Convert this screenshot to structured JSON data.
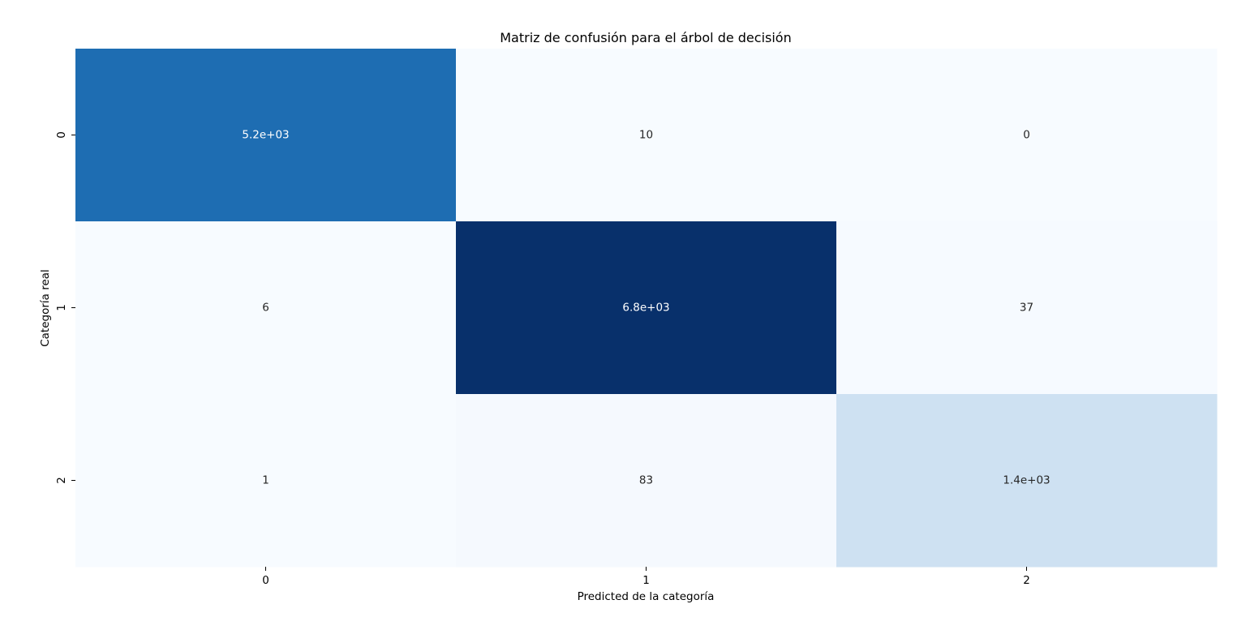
{
  "chart_data": {
    "type": "heatmap",
    "title": "Matriz de confusión para el árbol de decisión",
    "xlabel": "Predicted de la categoría",
    "ylabel": "Categoría real",
    "x_categories": [
      "0",
      "1",
      "2"
    ],
    "y_categories": [
      "0",
      "1",
      "2"
    ],
    "values": [
      [
        5200,
        10,
        0
      ],
      [
        6,
        6800,
        37
      ],
      [
        1,
        83,
        1400
      ]
    ],
    "annotations": [
      [
        "5.2e+03",
        "10",
        "0"
      ],
      [
        "6",
        "6.8e+03",
        "37"
      ],
      [
        "1",
        "83",
        "1.4e+03"
      ]
    ],
    "colormap": "Blues",
    "colorbar": false,
    "grid": false
  }
}
